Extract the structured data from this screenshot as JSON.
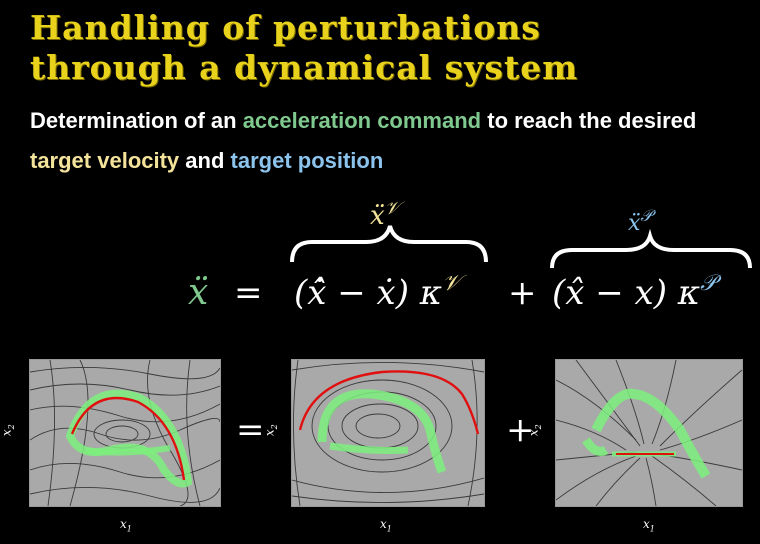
{
  "slide": {
    "title_line1": "Handling of perturbations",
    "title_line2": "through a dynamical system",
    "subtitle": {
      "part1": "Determination of an ",
      "accel": "acceleration command",
      "part2": " to reach the desired ",
      "velocity": "target velocity",
      "part3": " and ",
      "position": "target position"
    }
  },
  "equation": {
    "lhs": "ẍ",
    "equals": "=",
    "term_v": "(x̂̇ − ẋ) κ",
    "term_v_sup": "𝒱",
    "plus": "+",
    "term_p": "(x̂ − x) κ",
    "term_p_sup": "𝒫",
    "brace_v_label": "ẍ",
    "brace_v_sup": "𝒱",
    "brace_p_label": "ẍ",
    "brace_p_sup": "𝒫"
  },
  "plots": [
    {
      "xlabel": "x",
      "xsub": "1",
      "ylabel": "x",
      "ysub": "2"
    },
    {
      "xlabel": "x",
      "xsub": "1",
      "ylabel": "x",
      "ysub": "2"
    },
    {
      "xlabel": "x",
      "xsub": "1",
      "ylabel": "x",
      "ysub": "2"
    }
  ],
  "operators": {
    "equals": "=",
    "plus": "+"
  },
  "colors": {
    "title": "#e8d21c",
    "accel": "#7fc98f",
    "velocity": "#f4e39a",
    "position": "#8cc4ee",
    "trajectory": "#e01010",
    "region": "#7cf07c"
  }
}
